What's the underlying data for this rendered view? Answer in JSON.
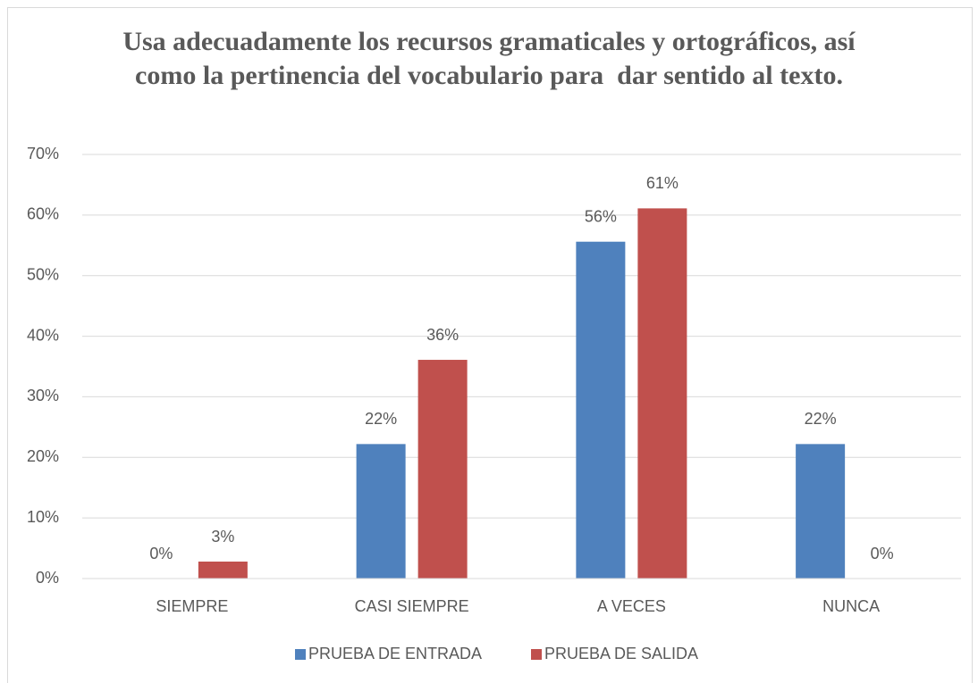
{
  "chart_data": {
    "type": "bar",
    "title": "Usa adecuadamente los recursos gramaticales y ortográficos, así como la pertinencia del vocabulario para  dar sentido al texto.",
    "categories": [
      "SIEMPRE",
      "CASI SIEMPRE",
      "A VECES",
      "NUNCA"
    ],
    "series": [
      {
        "name": "PRUEBA DE ENTRADA",
        "color": "#4f81bd",
        "values": [
          0,
          22.2,
          55.6,
          22.2
        ],
        "value_labels": [
          "0%",
          "22%",
          "56%",
          "22%"
        ]
      },
      {
        "name": "PRUEBA DE SALIDA",
        "color": "#c0504d",
        "values": [
          2.8,
          36.1,
          61.1,
          0
        ],
        "value_labels": [
          "3%",
          "36%",
          "61%",
          "0%"
        ]
      }
    ],
    "ylim": [
      0,
      70
    ],
    "yticks": [
      {
        "value": 0,
        "label": "0%"
      },
      {
        "value": 10,
        "label": "10%"
      },
      {
        "value": 20,
        "label": "20%"
      },
      {
        "value": 30,
        "label": "30%"
      },
      {
        "value": 40,
        "label": "40%"
      },
      {
        "value": 50,
        "label": "50%"
      },
      {
        "value": 60,
        "label": "60%"
      },
      {
        "value": 70,
        "label": "70%"
      }
    ],
    "grid": true,
    "legend": "bottom"
  }
}
